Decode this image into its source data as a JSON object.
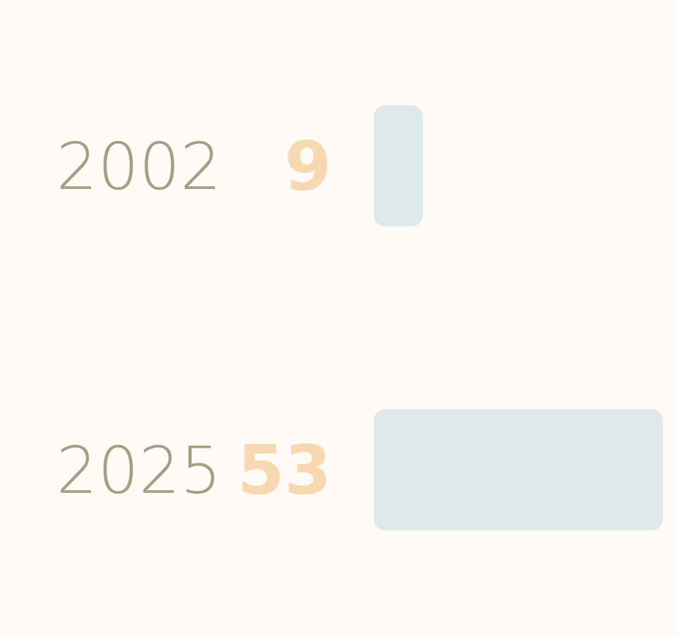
{
  "chart_data": {
    "type": "bar",
    "orientation": "horizontal",
    "categories": [
      "2002",
      "2025"
    ],
    "values": [
      9,
      53
    ],
    "color": "#dde9ea",
    "data_labels": true
  }
}
